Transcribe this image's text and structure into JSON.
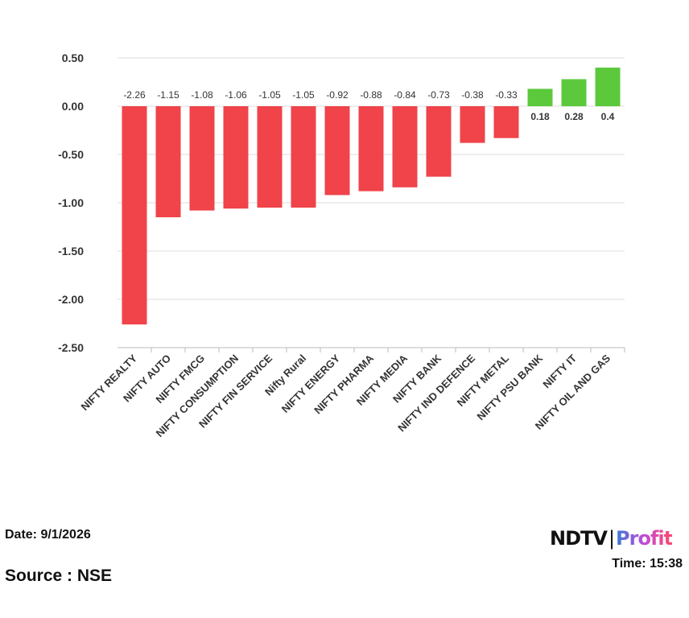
{
  "chart_data": {
    "type": "bar",
    "title": "",
    "xlabel": "",
    "ylabel": "",
    "ylim": [
      -2.5,
      0.5
    ],
    "yticks": [
      "0.50",
      "0.00",
      "-0.50",
      "-1.00",
      "-1.50",
      "-2.00",
      "-2.50"
    ],
    "ytick_values": [
      0.5,
      0,
      -0.5,
      -1,
      -1.5,
      -2,
      -2.5
    ],
    "grid": true,
    "categories": [
      "NIFTY REALTY",
      "NIFTY AUTO",
      "NIFTY FMCG",
      "NIFTY CONSUMPTION",
      "NIFTY FIN SERVICE",
      "Nifty Rural",
      "NIFTY ENERGY",
      "NIFTY PHARMA",
      "NIFTY MEDIA",
      "NIFTY BANK",
      "NIFTY IND DEFENCE",
      "NIFTY METAL",
      "NIFTY PSU BANK",
      "NIFTY IT",
      "NIFTY OIL AND GAS"
    ],
    "values": [
      -2.26,
      -1.15,
      -1.08,
      -1.06,
      -1.05,
      -1.05,
      -0.92,
      -0.88,
      -0.84,
      -0.73,
      -0.38,
      -0.33,
      0.18,
      0.28,
      0.4
    ],
    "labels": [
      "-2.26",
      "-1.15",
      "-1.08",
      "-1.06",
      "-1.05",
      "-1.05",
      "-0.92",
      "-0.88",
      "-0.84",
      "-0.73",
      "-0.38",
      "-0.33",
      "0.18",
      "0.28",
      "0.4"
    ],
    "colors": {
      "negative": "#f0434a",
      "positive": "#5cc93c"
    }
  },
  "footer": {
    "date": "Date: 9/1/2026",
    "source": "Source : NSE",
    "time": "Time: 15:38"
  },
  "logo": {
    "ndtv": "NDTV",
    "sep": "|",
    "profit": "Profit"
  }
}
